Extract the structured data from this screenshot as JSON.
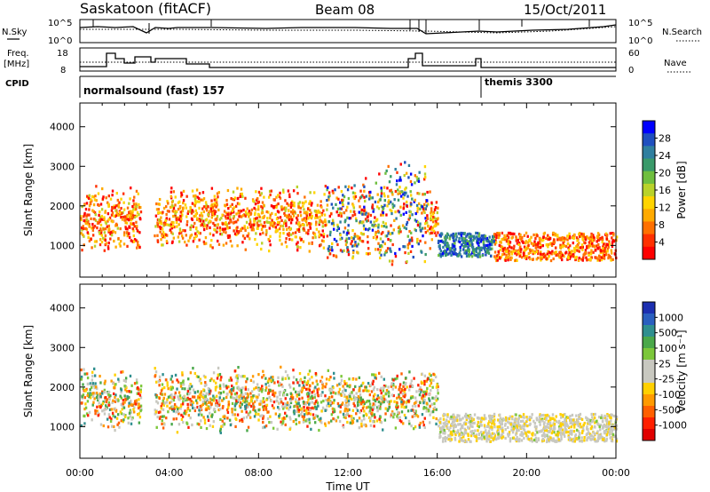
{
  "header": {
    "station": "Saskatoon (fitACF)",
    "beam": "Beam 08",
    "date": "15/Oct/2011"
  },
  "status_panels": {
    "nsky_label": "N.Sky",
    "nsky_ticks": [
      "10^5",
      "10^0"
    ],
    "nsearch_label": "N.Search",
    "nsearch_ticks": [
      "10^5",
      "10^0"
    ],
    "freq_label_line1": "Freq.",
    "freq_label_line2": "[MHz]",
    "freq_ticks": [
      "18",
      "8"
    ],
    "nave_label": "Nave",
    "nave_ticks": [
      "60",
      "0"
    ],
    "cpid_label": "CPID",
    "cpid_segments": [
      {
        "label": "normalsound (fast) 157",
        "start_hour": 0
      },
      {
        "label": "themis 3300",
        "start_hour": 18.0
      }
    ]
  },
  "chart_data": [
    {
      "type": "heatmap",
      "name": "power-panel",
      "ylabel": "Slant Range [km]",
      "xlabel": "",
      "ylim": [
        200,
        4600
      ],
      "yticks": [
        "1000",
        "2000",
        "3000",
        "4000"
      ],
      "colorbar_label": "Power [dB]",
      "colorbar_ticks": [
        "4",
        "8",
        "12",
        "16",
        "20",
        "24",
        "28"
      ],
      "colors": [
        "#0000ff",
        "#1f4fbf",
        "#2f7f9f",
        "#3a9a6a",
        "#6fbf3f",
        "#b9d22a",
        "#ffd400",
        "#ffaa00",
        "#ff7000",
        "#ff3000",
        "#ff0000"
      ]
    },
    {
      "type": "heatmap",
      "name": "velocity-panel",
      "ylabel": "Slant Range [km]",
      "xlabel": "Time UT",
      "ylim": [
        200,
        4600
      ],
      "yticks": [
        "1000",
        "2000",
        "3000",
        "4000"
      ],
      "xticks": [
        "00:00",
        "04:00",
        "08:00",
        "12:00",
        "16:00",
        "20:00",
        "00:00"
      ],
      "colorbar_label": "Velocity [m s⁻¹]",
      "colorbar_ticks": [
        "1000",
        "500",
        "100",
        "25",
        "-25",
        "-100",
        "-500",
        "-1000"
      ],
      "colors": [
        "#1c2fb0",
        "#2a5fbf",
        "#2f8f8f",
        "#4aa84a",
        "#7cc73a",
        "#c8c8c0",
        "#c8c8c0",
        "#ffd000",
        "#ff9a00",
        "#ff6000",
        "#ff2000",
        "#e00000"
      ]
    }
  ]
}
